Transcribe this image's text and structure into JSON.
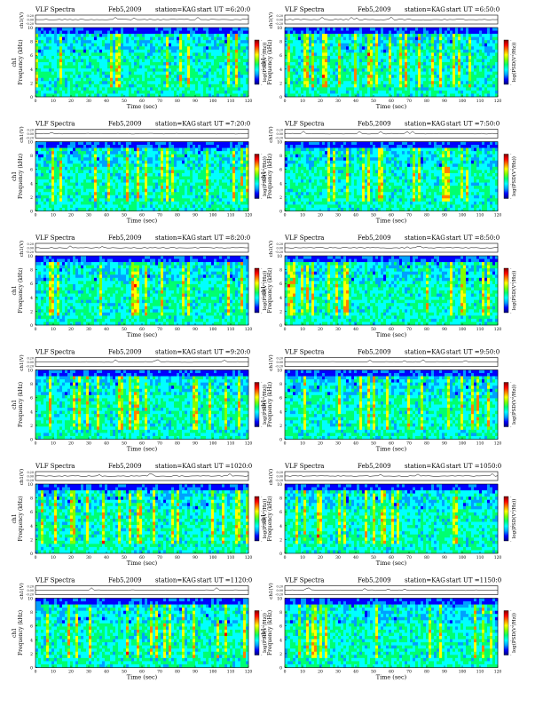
{
  "colors": {
    "colormap": [
      "#00007f",
      "#0000ff",
      "#00a0ff",
      "#00ffff",
      "#00ff70",
      "#80ff00",
      "#ffff00",
      "#ff8000",
      "#ff0000",
      "#7f0000"
    ],
    "background": "#ffffff",
    "line": "#000000"
  },
  "chart_data": [
    {
      "type": "heatmap",
      "header": {
        "left": "VLF Spectra",
        "date": "Feb5,2009",
        "station": "station=KAG",
        "start": "start UT =6:20:0"
      },
      "top_ylabel": "ch1(V)",
      "top_yticks": [
        "0.20",
        "0.00",
        "-0.20"
      ],
      "ylabel": "Frequency (kHz)",
      "ylabel_prefix": "ch1",
      "xlabel": "Time (sec)",
      "xticks": [
        "0",
        "10",
        "20",
        "30",
        "40",
        "50",
        "60",
        "70",
        "80",
        "90",
        "100",
        "110",
        "120"
      ],
      "yticks": [
        "0",
        "2",
        "4",
        "6",
        "8",
        "10"
      ],
      "xlim": [
        0,
        120
      ],
      "ylim": [
        0,
        10
      ],
      "colorbar_label": "log(PSD(V²/Hz))",
      "colorbar_ticks": [
        "-",
        "-",
        "-",
        "-"
      ]
    },
    {
      "type": "heatmap",
      "header": {
        "left": "VLF Spectra",
        "date": "Feb5,2009",
        "station": "station=KAG",
        "start": "start UT =6:50:0"
      },
      "top_ylabel": "ch1(V)",
      "top_yticks": [
        "0.20",
        "0.00",
        "-0.20"
      ],
      "ylabel": "Frequency (kHz)",
      "ylabel_prefix": "ch1",
      "xlabel": "Time (sec)",
      "xticks": [
        "0",
        "10",
        "20",
        "30",
        "40",
        "50",
        "60",
        "70",
        "80",
        "90",
        "100",
        "110",
        "120"
      ],
      "yticks": [
        "0",
        "2",
        "4",
        "6",
        "8",
        "10"
      ],
      "xlim": [
        0,
        120
      ],
      "ylim": [
        0,
        10
      ],
      "colorbar_label": "log(PSD(V²/Hz))",
      "colorbar_ticks": [
        "-",
        "-",
        "-",
        "-"
      ]
    },
    {
      "type": "heatmap",
      "header": {
        "left": "VLF Spectra",
        "date": "Feb5,2009",
        "station": "station=KAG",
        "start": "start UT =7:20:0"
      },
      "top_ylabel": "ch1(V)",
      "top_yticks": [
        "0.20",
        "0.00",
        "-0.20"
      ],
      "ylabel": "Frequency (kHz)",
      "ylabel_prefix": "ch1",
      "xlabel": "Time (sec)",
      "xticks": [
        "0",
        "10",
        "20",
        "30",
        "40",
        "50",
        "60",
        "70",
        "80",
        "90",
        "100",
        "110",
        "120"
      ],
      "yticks": [
        "0",
        "2",
        "4",
        "6",
        "8",
        "10"
      ],
      "xlim": [
        0,
        120
      ],
      "ylim": [
        0,
        10
      ],
      "colorbar_label": "log(PSD(V²/Hz))",
      "colorbar_ticks": [
        "-",
        "-",
        "-",
        "-"
      ]
    },
    {
      "type": "heatmap",
      "header": {
        "left": "VLF Spectra",
        "date": "Feb5,2009",
        "station": "station=KAG",
        "start": "start UT =7:50:0"
      },
      "top_ylabel": "ch1(V)",
      "top_yticks": [
        "0.20",
        "0.00",
        "-0.20"
      ],
      "ylabel": "Frequency (kHz)",
      "ylabel_prefix": "ch1",
      "xlabel": "Time (sec)",
      "xticks": [
        "0",
        "10",
        "20",
        "30",
        "40",
        "50",
        "60",
        "70",
        "80",
        "90",
        "100",
        "110",
        "120"
      ],
      "yticks": [
        "0",
        "2",
        "4",
        "6",
        "8",
        "10"
      ],
      "xlim": [
        0,
        120
      ],
      "ylim": [
        0,
        10
      ],
      "colorbar_label": "log(PSD(V²/Hz))",
      "colorbar_ticks": [
        "-",
        "-",
        "-",
        "-"
      ]
    },
    {
      "type": "heatmap",
      "header": {
        "left": "VLF Spectra",
        "date": "Feb5,2009",
        "station": "station=KAG",
        "start": "start UT =8:20:0"
      },
      "top_ylabel": "ch1(V)",
      "top_yticks": [
        "0.20",
        "0.00",
        "-0.20"
      ],
      "ylabel": "Frequency (kHz)",
      "ylabel_prefix": "ch1",
      "xlabel": "Time (sec)",
      "xticks": [
        "0",
        "10",
        "20",
        "30",
        "40",
        "50",
        "60",
        "70",
        "80",
        "90",
        "100",
        "110",
        "120"
      ],
      "yticks": [
        "0",
        "2",
        "4",
        "6",
        "8",
        "10"
      ],
      "xlim": [
        0,
        120
      ],
      "ylim": [
        0,
        10
      ],
      "colorbar_label": "log(PSD(V²/Hz))",
      "colorbar_ticks": [
        "-",
        "-",
        "-",
        "-"
      ]
    },
    {
      "type": "heatmap",
      "header": {
        "left": "VLF Spectra",
        "date": "Feb5,2009",
        "station": "station=KAG",
        "start": "start UT =8:50:0"
      },
      "top_ylabel": "ch1(V)",
      "top_yticks": [
        "0.20",
        "0.00",
        "-0.20"
      ],
      "ylabel": "Frequency (kHz)",
      "ylabel_prefix": "ch1",
      "xlabel": "Time (sec)",
      "xticks": [
        "0",
        "10",
        "20",
        "30",
        "40",
        "50",
        "60",
        "70",
        "80",
        "90",
        "100",
        "110",
        "120"
      ],
      "yticks": [
        "0",
        "2",
        "4",
        "6",
        "8",
        "10"
      ],
      "xlim": [
        0,
        120
      ],
      "ylim": [
        0,
        10
      ],
      "colorbar_label": "log(PSD(V²/Hz))",
      "colorbar_ticks": [
        "-",
        "-",
        "-",
        "-"
      ]
    },
    {
      "type": "heatmap",
      "header": {
        "left": "VLF Spectra",
        "date": "Feb5,2009",
        "station": "station=KAG",
        "start": "start UT =9:20:0"
      },
      "top_ylabel": "ch1(V)",
      "top_yticks": [
        "0.20",
        "0.00",
        "-0.20"
      ],
      "ylabel": "Frequency (kHz)",
      "ylabel_prefix": "ch1",
      "xlabel": "Time (sec)",
      "xticks": [
        "0",
        "10",
        "20",
        "30",
        "40",
        "50",
        "60",
        "70",
        "80",
        "90",
        "100",
        "110",
        "120"
      ],
      "yticks": [
        "0",
        "2",
        "4",
        "6",
        "8",
        "10"
      ],
      "xlim": [
        0,
        120
      ],
      "ylim": [
        0,
        10
      ],
      "colorbar_label": "log(PSD(V²/Hz))",
      "colorbar_ticks": [
        "-",
        "-",
        "-",
        "-"
      ]
    },
    {
      "type": "heatmap",
      "header": {
        "left": "VLF Spectra",
        "date": "Feb5,2009",
        "station": "station=KAG",
        "start": "start UT =9:50:0"
      },
      "top_ylabel": "ch1(V)",
      "top_yticks": [
        "0.20",
        "0.00",
        "-0.20"
      ],
      "ylabel": "Frequency (kHz)",
      "ylabel_prefix": "ch1",
      "xlabel": "Time (sec)",
      "xticks": [
        "0",
        "10",
        "20",
        "30",
        "40",
        "50",
        "60",
        "70",
        "80",
        "90",
        "100",
        "110",
        "120"
      ],
      "yticks": [
        "0",
        "2",
        "4",
        "6",
        "8",
        "10"
      ],
      "xlim": [
        0,
        120
      ],
      "ylim": [
        0,
        10
      ],
      "colorbar_label": "log(PSD(V²/Hz))",
      "colorbar_ticks": [
        "-",
        "-",
        "-",
        "-"
      ]
    },
    {
      "type": "heatmap",
      "header": {
        "left": "VLF Spectra",
        "date": "Feb5,2009",
        "station": "station=KAG",
        "start": "start UT =1020:0"
      },
      "top_ylabel": "ch1(V)",
      "top_yticks": [
        "0.20",
        "0.00",
        "-0.20"
      ],
      "ylabel": "Frequency (kHz)",
      "ylabel_prefix": "ch1",
      "xlabel": "Time (sec)",
      "xticks": [
        "0",
        "10",
        "20",
        "30",
        "40",
        "50",
        "60",
        "70",
        "80",
        "90",
        "100",
        "110",
        "120"
      ],
      "yticks": [
        "0",
        "2",
        "4",
        "6",
        "8",
        "10"
      ],
      "xlim": [
        0,
        120
      ],
      "ylim": [
        0,
        10
      ],
      "colorbar_label": "log(PSD(V²/Hz))",
      "colorbar_ticks": [
        "-",
        "-",
        "-",
        "-"
      ]
    },
    {
      "type": "heatmap",
      "header": {
        "left": "VLF Spectra",
        "date": "Feb5,2009",
        "station": "station=KAG",
        "start": "start UT =1050:0"
      },
      "top_ylabel": "ch1(V)",
      "top_yticks": [
        "0.20",
        "0.00",
        "-0.20"
      ],
      "ylabel": "Frequency (kHz)",
      "ylabel_prefix": "ch1",
      "xlabel": "Time (sec)",
      "xticks": [
        "0",
        "10",
        "20",
        "30",
        "40",
        "50",
        "60",
        "70",
        "80",
        "90",
        "100",
        "110",
        "120"
      ],
      "yticks": [
        "0",
        "2",
        "4",
        "6",
        "8",
        "10"
      ],
      "xlim": [
        0,
        120
      ],
      "ylim": [
        0,
        10
      ],
      "colorbar_label": "log(PSD(V²/Hz))",
      "colorbar_ticks": [
        "-",
        "-",
        "-",
        "-"
      ]
    },
    {
      "type": "heatmap",
      "header": {
        "left": "VLF Spectra",
        "date": "Feb5,2009",
        "station": "station=KAG",
        "start": "start UT =1120:0"
      },
      "top_ylabel": "ch1(V)",
      "top_yticks": [
        "0.20",
        "0.00",
        "-0.20"
      ],
      "ylabel": "Frequency (kHz)",
      "ylabel_prefix": "ch1",
      "xlabel": "Time (sec)",
      "xticks": [
        "0",
        "10",
        "20",
        "30",
        "40",
        "50",
        "60",
        "70",
        "80",
        "90",
        "100",
        "110",
        "120"
      ],
      "yticks": [
        "0",
        "2",
        "4",
        "6",
        "8",
        "10"
      ],
      "xlim": [
        0,
        120
      ],
      "ylim": [
        0,
        10
      ],
      "colorbar_label": "log(PSD(V²/Hz))",
      "colorbar_ticks": [
        "-",
        "-",
        "-",
        "-"
      ]
    },
    {
      "type": "heatmap",
      "header": {
        "left": "VLF Spectra",
        "date": "Feb5,2009",
        "station": "station=KAG",
        "start": "start UT =1150:0"
      },
      "top_ylabel": "ch1(V)",
      "top_yticks": [
        "0.20",
        "0.00",
        "-0.20"
      ],
      "ylabel": "Frequency (kHz)",
      "ylabel_prefix": "ch1",
      "xlabel": "Time (sec)",
      "xticks": [
        "0",
        "10",
        "20",
        "30",
        "40",
        "50",
        "60",
        "70",
        "80",
        "90",
        "100",
        "110",
        "120"
      ],
      "yticks": [
        "0",
        "2",
        "4",
        "6",
        "8",
        "10"
      ],
      "xlim": [
        0,
        120
      ],
      "ylim": [
        0,
        10
      ],
      "colorbar_label": "log(PSD(V²/Hz))",
      "colorbar_ticks": [
        "-",
        "-",
        "-",
        "-"
      ]
    }
  ]
}
